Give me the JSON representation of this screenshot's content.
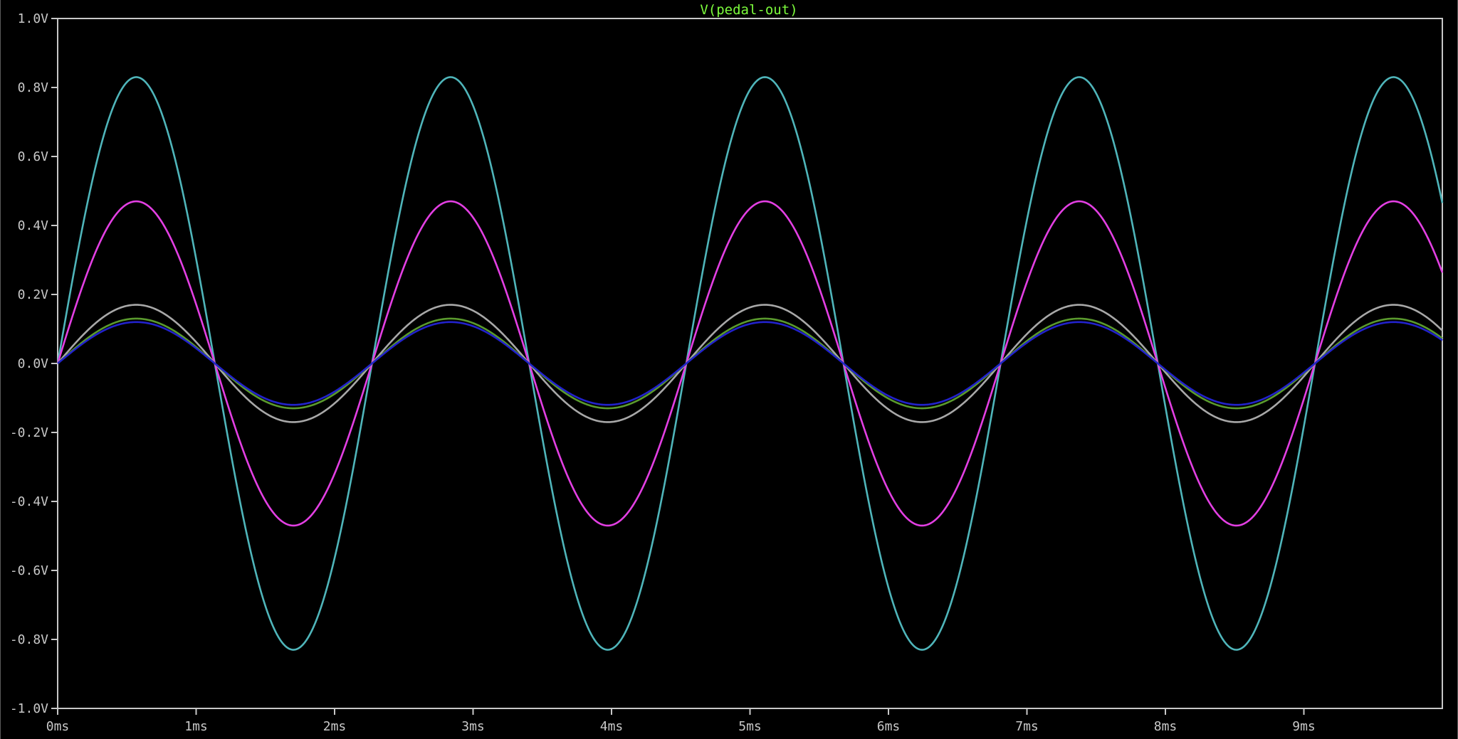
{
  "chart_data": {
    "type": "line",
    "title": "V(pedal-out)",
    "title_color": "#7CFC3C",
    "xlabel": "",
    "ylabel": "",
    "xlim": [
      0,
      10
    ],
    "ylim": [
      -1.0,
      1.0
    ],
    "x_unit": "ms",
    "grid": false,
    "x_ticks": [
      0,
      1,
      2,
      3,
      4,
      5,
      6,
      7,
      8,
      9
    ],
    "x_tick_labels": [
      "0ms",
      "1ms",
      "2ms",
      "3ms",
      "4ms",
      "5ms",
      "6ms",
      "7ms",
      "8ms",
      "9ms"
    ],
    "y_ticks": [
      1.0,
      0.8,
      0.6,
      0.4,
      0.2,
      0.0,
      -0.2,
      -0.4,
      -0.6,
      -0.8,
      -1.0
    ],
    "y_tick_labels": [
      "1.0V",
      "0.8V",
      "0.6V",
      "0.4V",
      "0.2V",
      "0.0V",
      "-0.2V",
      "-0.4V",
      "-0.6V",
      "-0.8V",
      "-1.0V"
    ],
    "frame_color": "#c8c8c8",
    "waveform": {
      "shape": "sine",
      "period_ms": 2.27,
      "phase_ms": 0,
      "x_end_ms": 10
    },
    "series": [
      {
        "amplitude": 0.83,
        "color": "#4FB5BA"
      },
      {
        "amplitude": 0.47,
        "color": "#E33FE3"
      },
      {
        "amplitude": 0.17,
        "color": "#A8A8A8"
      },
      {
        "amplitude": 0.13,
        "color": "#5A9A2E"
      },
      {
        "amplitude": 0.12,
        "color": "#2222CC"
      }
    ]
  }
}
